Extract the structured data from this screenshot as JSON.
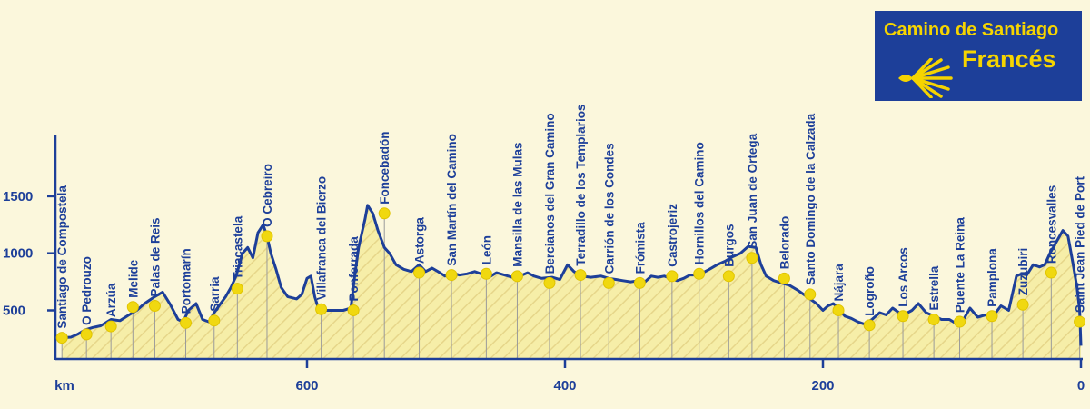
{
  "title": {
    "line1": "Camino de Santiago",
    "line2": "Francés",
    "logo_icon": "scallop-shell-icon"
  },
  "colors": {
    "background": "#fbf7dc",
    "line": "#1d3f99",
    "fill": "#f6eea8",
    "hatch": "#e6d68a",
    "marker": "#f0d810",
    "title_bg": "#1d3f99",
    "title_text": "#f5d400"
  },
  "chart_data": {
    "type": "area",
    "xlabel": "km",
    "ylabel": "",
    "x_reversed": true,
    "xlim": [
      790,
      0
    ],
    "ylim": [
      180,
      1900
    ],
    "x_ticks": [
      600,
      400,
      200,
      0
    ],
    "y_ticks": [
      500,
      1000,
      1500
    ],
    "profile": [
      [
        790,
        260
      ],
      [
        783,
        265
      ],
      [
        778,
        290
      ],
      [
        772,
        330
      ],
      [
        766,
        350
      ],
      [
        760,
        365
      ],
      [
        752,
        420
      ],
      [
        745,
        410
      ],
      [
        738,
        460
      ],
      [
        732,
        500
      ],
      [
        726,
        560
      ],
      [
        718,
        620
      ],
      [
        712,
        660
      ],
      [
        706,
        550
      ],
      [
        700,
        420
      ],
      [
        696,
        400
      ],
      [
        692,
        500
      ],
      [
        686,
        560
      ],
      [
        681,
        420
      ],
      [
        676,
        400
      ],
      [
        672,
        480
      ],
      [
        667,
        560
      ],
      [
        663,
        620
      ],
      [
        659,
        700
      ],
      [
        655,
        800
      ],
      [
        650,
        1000
      ],
      [
        646,
        1050
      ],
      [
        642,
        960
      ],
      [
        638,
        1180
      ],
      [
        634,
        1250
      ],
      [
        631,
        1150
      ],
      [
        628,
        1000
      ],
      [
        624,
        860
      ],
      [
        620,
        700
      ],
      [
        615,
        620
      ],
      [
        608,
        600
      ],
      [
        604,
        640
      ],
      [
        600,
        780
      ],
      [
        597,
        800
      ],
      [
        594,
        620
      ],
      [
        591,
        510
      ],
      [
        585,
        500
      ],
      [
        578,
        500
      ],
      [
        572,
        500
      ],
      [
        566,
        520
      ],
      [
        563,
        800
      ],
      [
        560,
        1050
      ],
      [
        558,
        1150
      ],
      [
        555,
        1300
      ],
      [
        553,
        1420
      ],
      [
        549,
        1350
      ],
      [
        545,
        1200
      ],
      [
        540,
        1050
      ],
      [
        536,
        1000
      ],
      [
        531,
        900
      ],
      [
        525,
        860
      ],
      [
        519,
        840
      ],
      [
        513,
        900
      ],
      [
        508,
        840
      ],
      [
        503,
        870
      ],
      [
        497,
        830
      ],
      [
        493,
        800
      ],
      [
        488,
        830
      ],
      [
        482,
        810
      ],
      [
        476,
        820
      ],
      [
        470,
        840
      ],
      [
        465,
        820
      ],
      [
        459,
        790
      ],
      [
        453,
        830
      ],
      [
        447,
        810
      ],
      [
        441,
        790
      ],
      [
        435,
        800
      ],
      [
        429,
        830
      ],
      [
        424,
        800
      ],
      [
        418,
        780
      ],
      [
        410,
        790
      ],
      [
        404,
        770
      ],
      [
        398,
        900
      ],
      [
        393,
        840
      ],
      [
        387,
        800
      ],
      [
        380,
        790
      ],
      [
        372,
        800
      ],
      [
        366,
        780
      ],
      [
        360,
        770
      ],
      [
        355,
        760
      ],
      [
        349,
        750
      ],
      [
        343,
        760
      ],
      [
        338,
        750
      ],
      [
        333,
        800
      ],
      [
        328,
        790
      ],
      [
        323,
        800
      ],
      [
        318,
        780
      ],
      [
        313,
        760
      ],
      [
        308,
        780
      ],
      [
        303,
        810
      ],
      [
        298,
        810
      ],
      [
        293,
        830
      ],
      [
        288,
        860
      ],
      [
        282,
        900
      ],
      [
        276,
        930
      ],
      [
        270,
        970
      ],
      [
        264,
        1000
      ],
      [
        258,
        1060
      ],
      [
        252,
        1050
      ],
      [
        248,
        900
      ],
      [
        244,
        800
      ],
      [
        238,
        760
      ],
      [
        232,
        740
      ],
      [
        226,
        720
      ],
      [
        220,
        680
      ],
      [
        215,
        640
      ],
      [
        210,
        600
      ],
      [
        205,
        560
      ],
      [
        200,
        500
      ],
      [
        196,
        540
      ],
      [
        192,
        560
      ],
      [
        188,
        520
      ],
      [
        183,
        450
      ],
      [
        178,
        430
      ],
      [
        173,
        400
      ],
      [
        168,
        380
      ],
      [
        162,
        420
      ],
      [
        156,
        480
      ],
      [
        151,
        460
      ],
      [
        146,
        520
      ],
      [
        141,
        480
      ],
      [
        136,
        470
      ],
      [
        131,
        500
      ],
      [
        126,
        560
      ],
      [
        120,
        480
      ],
      [
        114,
        450
      ],
      [
        108,
        420
      ],
      [
        102,
        420
      ],
      [
        96,
        380
      ],
      [
        91,
        420
      ],
      [
        86,
        520
      ],
      [
        80,
        440
      ],
      [
        74,
        460
      ],
      [
        68,
        450
      ],
      [
        62,
        540
      ],
      [
        56,
        500
      ],
      [
        50,
        800
      ],
      [
        46,
        820
      ],
      [
        42,
        810
      ],
      [
        37,
        900
      ],
      [
        32,
        880
      ],
      [
        28,
        900
      ],
      [
        24,
        1000
      ],
      [
        19,
        1100
      ],
      [
        14,
        1200
      ],
      [
        10,
        1150
      ],
      [
        6,
        900
      ],
      [
        3,
        700
      ],
      [
        1,
        500
      ],
      [
        0,
        190
      ]
    ],
    "stages": [
      {
        "name": "Santiago de Compostela",
        "km": 790,
        "alt": 260
      },
      {
        "name": "O Pedrouzo",
        "km": 771,
        "alt": 290
      },
      {
        "name": "Arzúa",
        "km": 752,
        "alt": 360
      },
      {
        "name": "Melide",
        "km": 735,
        "alt": 530
      },
      {
        "name": "Palas de Reis",
        "km": 718,
        "alt": 540
      },
      {
        "name": "Portomarín",
        "km": 694,
        "alt": 390
      },
      {
        "name": "Sarria",
        "km": 672,
        "alt": 410
      },
      {
        "name": "Triacastela",
        "km": 654,
        "alt": 690
      },
      {
        "name": "O Cebreiro",
        "km": 631,
        "alt": 1150
      },
      {
        "name": "Villafranca del Bierzo",
        "km": 589,
        "alt": 510
      },
      {
        "name": "Ponferrada",
        "km": 564,
        "alt": 500
      },
      {
        "name": "Foncebadón",
        "km": 540,
        "alt": 1350
      },
      {
        "name": "Astorga",
        "km": 513,
        "alt": 830
      },
      {
        "name": "San Martín del Camino",
        "km": 488,
        "alt": 810
      },
      {
        "name": "León",
        "km": 461,
        "alt": 820
      },
      {
        "name": "Mansilla de las Mulas",
        "km": 437,
        "alt": 800
      },
      {
        "name": "Bercianos del Gran Camino",
        "km": 412,
        "alt": 740
      },
      {
        "name": "Terradillo de los Templarios",
        "km": 388,
        "alt": 810
      },
      {
        "name": "Carrión de los Condes",
        "km": 366,
        "alt": 740
      },
      {
        "name": "Frómista",
        "km": 342,
        "alt": 740
      },
      {
        "name": "Castrojeriz",
        "km": 317,
        "alt": 800
      },
      {
        "name": "Hornillos del Camino",
        "km": 296,
        "alt": 820
      },
      {
        "name": "Burgos",
        "km": 273,
        "alt": 800
      },
      {
        "name": "San Juan de Ortega",
        "km": 255,
        "alt": 960
      },
      {
        "name": "Belorado",
        "km": 230,
        "alt": 780
      },
      {
        "name": "Santo Domingo de la Calzada",
        "km": 210,
        "alt": 640
      },
      {
        "name": "Nájara",
        "km": 188,
        "alt": 500
      },
      {
        "name": "Logroño",
        "km": 164,
        "alt": 370
      },
      {
        "name": "Los Arcos",
        "km": 138,
        "alt": 450
      },
      {
        "name": "Estrella",
        "km": 114,
        "alt": 420
      },
      {
        "name": "Puente La Reina",
        "km": 94,
        "alt": 400
      },
      {
        "name": "Pamplona",
        "km": 69,
        "alt": 450
      },
      {
        "name": "Zuzubiri",
        "km": 45,
        "alt": 550
      },
      {
        "name": "Roncesvalles",
        "km": 23,
        "alt": 830
      },
      {
        "name": "Saint Jean Pied de Port",
        "km": 1,
        "alt": 400
      }
    ]
  }
}
